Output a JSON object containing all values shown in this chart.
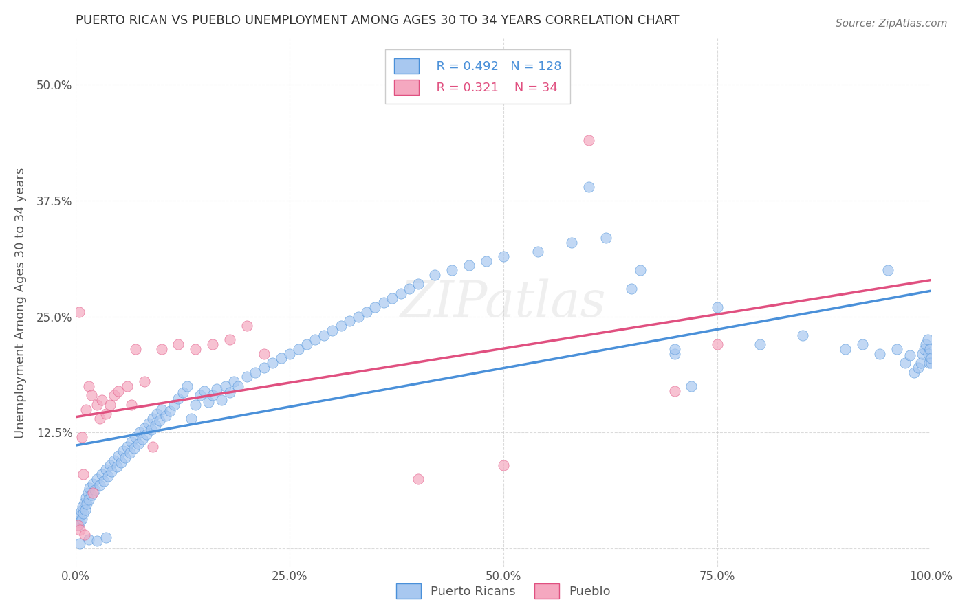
{
  "title": "PUERTO RICAN VS PUEBLO UNEMPLOYMENT AMONG AGES 30 TO 34 YEARS CORRELATION CHART",
  "source": "Source: ZipAtlas.com",
  "ylabel": "Unemployment Among Ages 30 to 34 years",
  "xlim": [
    0,
    1.0
  ],
  "ylim": [
    -0.02,
    0.55
  ],
  "xticks": [
    0.0,
    0.25,
    0.5,
    0.75,
    1.0
  ],
  "xtick_labels": [
    "0.0%",
    "25.0%",
    "50.0%",
    "75.0%",
    "100.0%"
  ],
  "yticks": [
    0.0,
    0.125,
    0.25,
    0.375,
    0.5
  ],
  "ytick_labels": [
    "",
    "12.5%",
    "25.0%",
    "37.5%",
    "50.0%"
  ],
  "legend_blue_R": "0.492",
  "legend_blue_N": "128",
  "legend_pink_R": "0.321",
  "legend_pink_N": "34",
  "blue_scatter_color": "#a8c8f0",
  "pink_scatter_color": "#f5a8c0",
  "blue_line_color": "#4a90d9",
  "pink_line_color": "#e05080",
  "legend_label_blue": "Puerto Ricans",
  "legend_label_pink": "Pueblo",
  "watermark": "ZIPatlas",
  "background_color": "#ffffff",
  "grid_color": "#cccccc",
  "title_color": "#333333",
  "blue_points_x": [
    0.002,
    0.003,
    0.004,
    0.005,
    0.006,
    0.007,
    0.008,
    0.009,
    0.01,
    0.011,
    0.012,
    0.013,
    0.014,
    0.015,
    0.016,
    0.018,
    0.02,
    0.022,
    0.025,
    0.028,
    0.03,
    0.033,
    0.035,
    0.038,
    0.04,
    0.042,
    0.045,
    0.048,
    0.05,
    0.053,
    0.055,
    0.058,
    0.06,
    0.063,
    0.065,
    0.068,
    0.07,
    0.073,
    0.075,
    0.078,
    0.08,
    0.083,
    0.085,
    0.088,
    0.09,
    0.093,
    0.095,
    0.098,
    0.1,
    0.105,
    0.11,
    0.115,
    0.12,
    0.125,
    0.13,
    0.135,
    0.14,
    0.145,
    0.15,
    0.155,
    0.16,
    0.165,
    0.17,
    0.175,
    0.18,
    0.185,
    0.19,
    0.2,
    0.21,
    0.22,
    0.23,
    0.24,
    0.25,
    0.26,
    0.27,
    0.28,
    0.29,
    0.3,
    0.31,
    0.32,
    0.33,
    0.34,
    0.35,
    0.36,
    0.37,
    0.38,
    0.39,
    0.4,
    0.42,
    0.44,
    0.46,
    0.48,
    0.5,
    0.54,
    0.58,
    0.62,
    0.66,
    0.7,
    0.75,
    0.8,
    0.85,
    0.9,
    0.92,
    0.94,
    0.95,
    0.96,
    0.97,
    0.975,
    0.98,
    0.985,
    0.988,
    0.99,
    0.992,
    0.994,
    0.996,
    0.997,
    0.998,
    0.999,
    1.0,
    1.0,
    0.005,
    0.015,
    0.025,
    0.035,
    0.6,
    0.65,
    0.7,
    0.72
  ],
  "blue_points_y": [
    0.03,
    0.025,
    0.035,
    0.028,
    0.04,
    0.032,
    0.045,
    0.038,
    0.05,
    0.042,
    0.055,
    0.048,
    0.06,
    0.053,
    0.065,
    0.058,
    0.07,
    0.063,
    0.075,
    0.068,
    0.08,
    0.073,
    0.085,
    0.078,
    0.09,
    0.083,
    0.095,
    0.088,
    0.1,
    0.093,
    0.105,
    0.098,
    0.11,
    0.103,
    0.115,
    0.108,
    0.12,
    0.113,
    0.125,
    0.118,
    0.13,
    0.123,
    0.135,
    0.128,
    0.14,
    0.133,
    0.145,
    0.138,
    0.15,
    0.143,
    0.148,
    0.155,
    0.162,
    0.168,
    0.175,
    0.14,
    0.155,
    0.165,
    0.17,
    0.158,
    0.165,
    0.172,
    0.16,
    0.175,
    0.168,
    0.18,
    0.175,
    0.185,
    0.19,
    0.195,
    0.2,
    0.205,
    0.21,
    0.215,
    0.22,
    0.225,
    0.23,
    0.235,
    0.24,
    0.245,
    0.25,
    0.255,
    0.26,
    0.265,
    0.27,
    0.275,
    0.28,
    0.285,
    0.295,
    0.3,
    0.305,
    0.31,
    0.315,
    0.32,
    0.33,
    0.335,
    0.3,
    0.21,
    0.26,
    0.22,
    0.23,
    0.215,
    0.22,
    0.21,
    0.3,
    0.215,
    0.2,
    0.208,
    0.19,
    0.195,
    0.2,
    0.21,
    0.215,
    0.22,
    0.225,
    0.21,
    0.2,
    0.215,
    0.2,
    0.205,
    0.005,
    0.01,
    0.008,
    0.012,
    0.39,
    0.28,
    0.215,
    0.175
  ],
  "pink_points_x": [
    0.002,
    0.004,
    0.005,
    0.007,
    0.009,
    0.01,
    0.012,
    0.015,
    0.018,
    0.02,
    0.025,
    0.028,
    0.03,
    0.035,
    0.04,
    0.045,
    0.05,
    0.06,
    0.065,
    0.07,
    0.08,
    0.09,
    0.1,
    0.12,
    0.14,
    0.16,
    0.18,
    0.2,
    0.22,
    0.4,
    0.5,
    0.6,
    0.7,
    0.75
  ],
  "pink_points_y": [
    0.025,
    0.255,
    0.02,
    0.12,
    0.08,
    0.015,
    0.15,
    0.175,
    0.165,
    0.06,
    0.155,
    0.14,
    0.16,
    0.145,
    0.155,
    0.165,
    0.17,
    0.175,
    0.155,
    0.215,
    0.18,
    0.11,
    0.215,
    0.22,
    0.215,
    0.22,
    0.225,
    0.24,
    0.21,
    0.075,
    0.09,
    0.44,
    0.17,
    0.22
  ]
}
